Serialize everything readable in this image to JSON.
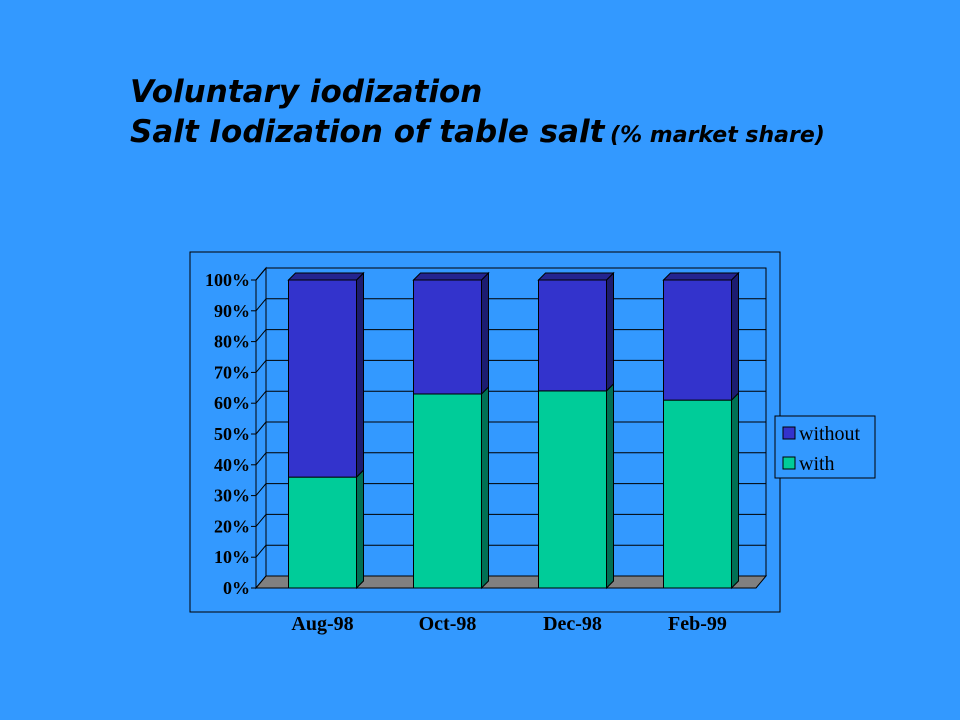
{
  "title": {
    "line1": "Voluntary iodization",
    "line2": "Salt Iodization of table salt",
    "line2_suffix": "(% market share)"
  },
  "colors": {
    "background": "#3399ff",
    "with": "#00cc99",
    "without": "#3333cc",
    "floor": "#808080"
  },
  "chart_data": {
    "type": "bar",
    "stacked": true,
    "percent_axis": true,
    "title": "Voluntary iodization Salt Iodization of table salt (% market share)",
    "categories": [
      "Aug-98",
      "Oct-98",
      "Dec-98",
      "Feb-99"
    ],
    "series": [
      {
        "name": "with",
        "values": [
          36,
          63,
          64,
          61
        ],
        "color": "#00cc99"
      },
      {
        "name": "without",
        "values": [
          64,
          37,
          36,
          39
        ],
        "color": "#3333cc"
      }
    ],
    "yticks": [
      "0%",
      "10%",
      "20%",
      "30%",
      "40%",
      "50%",
      "60%",
      "70%",
      "80%",
      "90%",
      "100%"
    ],
    "ylim": [
      0,
      100
    ],
    "grid": true,
    "legend_position": "right",
    "legend_order": [
      "without",
      "with"
    ]
  }
}
